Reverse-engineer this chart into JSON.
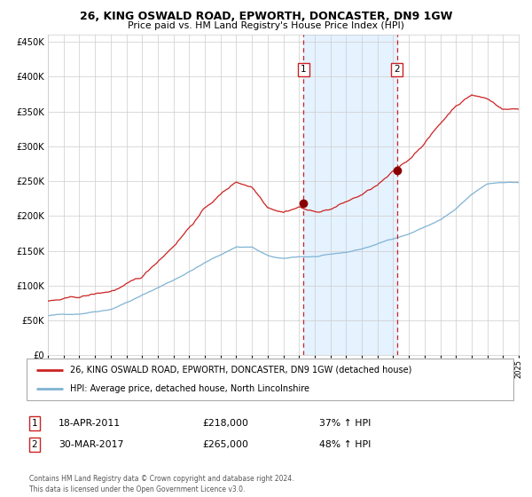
{
  "title1": "26, KING OSWALD ROAD, EPWORTH, DONCASTER, DN9 1GW",
  "title2": "Price paid vs. HM Land Registry's House Price Index (HPI)",
  "legend_line1": "26, KING OSWALD ROAD, EPWORTH, DONCASTER, DN9 1GW (detached house)",
  "legend_line2": "HPI: Average price, detached house, North Lincolnshire",
  "annotation1_date": "18-APR-2011",
  "annotation1_price": "£218,000",
  "annotation1_pct": "37% ↑ HPI",
  "annotation2_date": "30-MAR-2017",
  "annotation2_price": "£265,000",
  "annotation2_pct": "48% ↑ HPI",
  "footer": "Contains HM Land Registry data © Crown copyright and database right 2024.\nThis data is licensed under the Open Government Licence v3.0.",
  "red_color": "#cc2222",
  "blue_color": "#7fb3d3",
  "background_color": "#ffffff",
  "plot_bg_color": "#ffffff",
  "shade_color": "#ddeeff",
  "grid_color": "#cccccc",
  "ylim_min": 0,
  "ylim_max": 460000,
  "sale1_year": 2011.29,
  "sale2_year": 2017.24,
  "sale1_value": 218000,
  "sale2_value": 265000,
  "dot_color": "#880000"
}
